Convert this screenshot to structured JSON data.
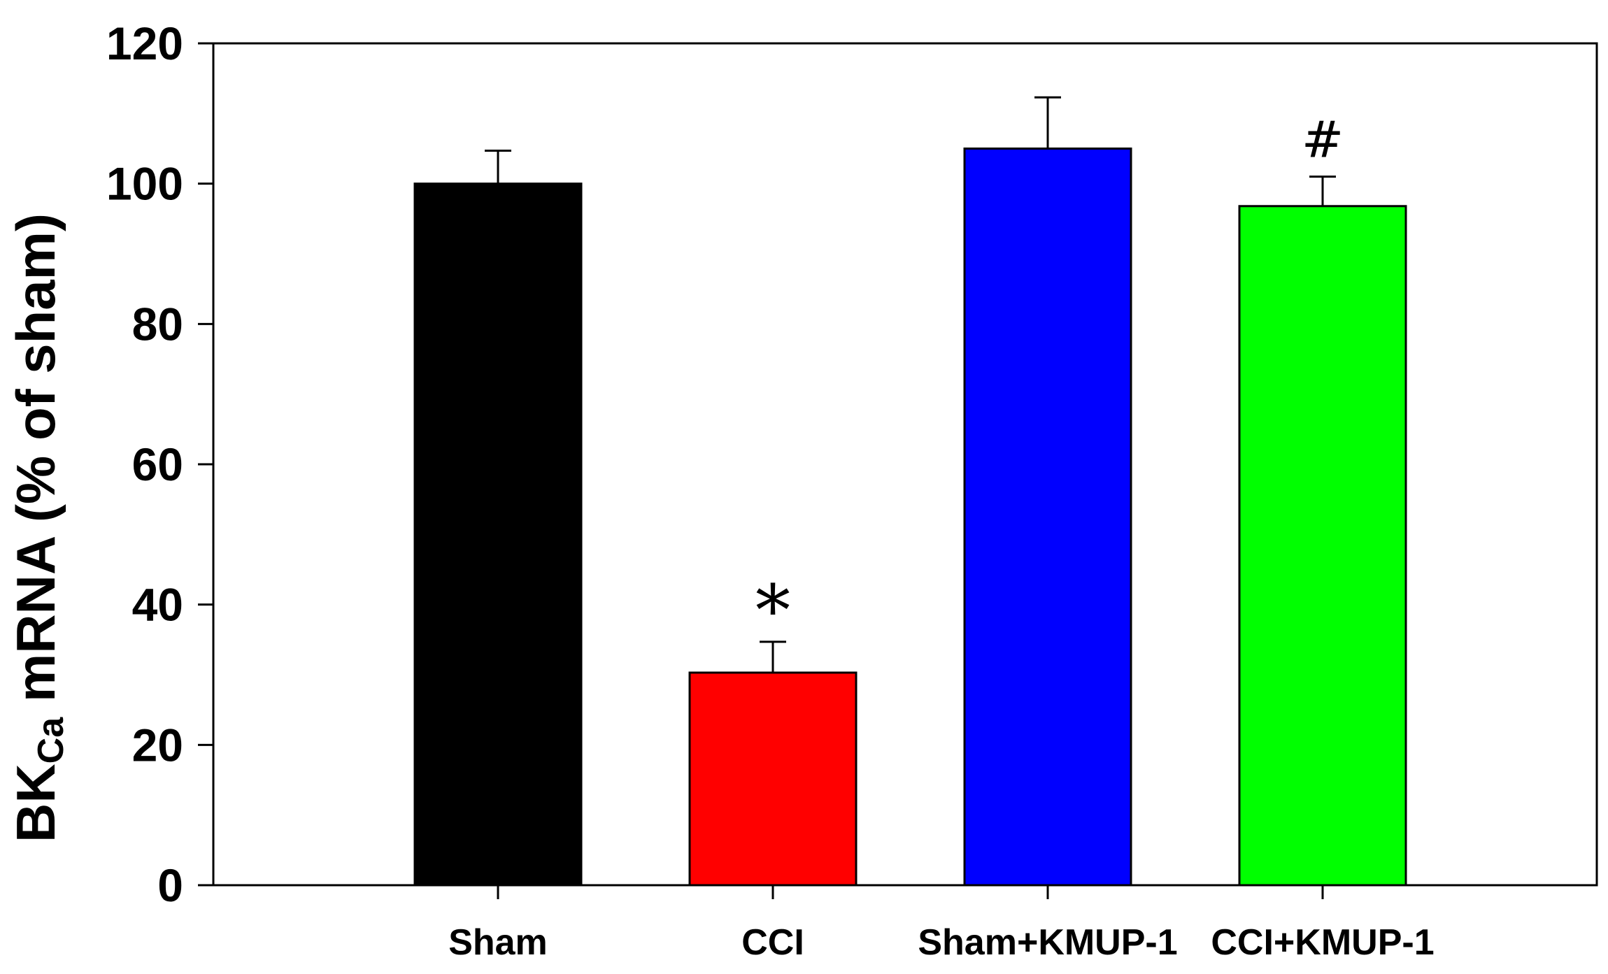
{
  "chart_data": {
    "type": "bar",
    "categories": [
      "Sham",
      "CCI",
      "Sham+KMUP-1",
      "CCI+KMUP-1"
    ],
    "values": [
      100,
      30.3,
      105,
      96.8
    ],
    "errors": [
      4.7,
      4.4,
      7.3,
      4.2
    ],
    "colors": [
      "#000000",
      "#ff0000",
      "#0000ff",
      "#00ff00"
    ],
    "annotations": [
      "",
      "*",
      "",
      "#"
    ],
    "yticks": [
      0,
      20,
      40,
      60,
      80,
      100,
      120
    ],
    "ylim": [
      0,
      120
    ],
    "ylabel": {
      "main": "BK",
      "sub": "Ca",
      "rest": " mRNA (% of sham)"
    },
    "xlabel": "",
    "title": "",
    "grid": false
  }
}
